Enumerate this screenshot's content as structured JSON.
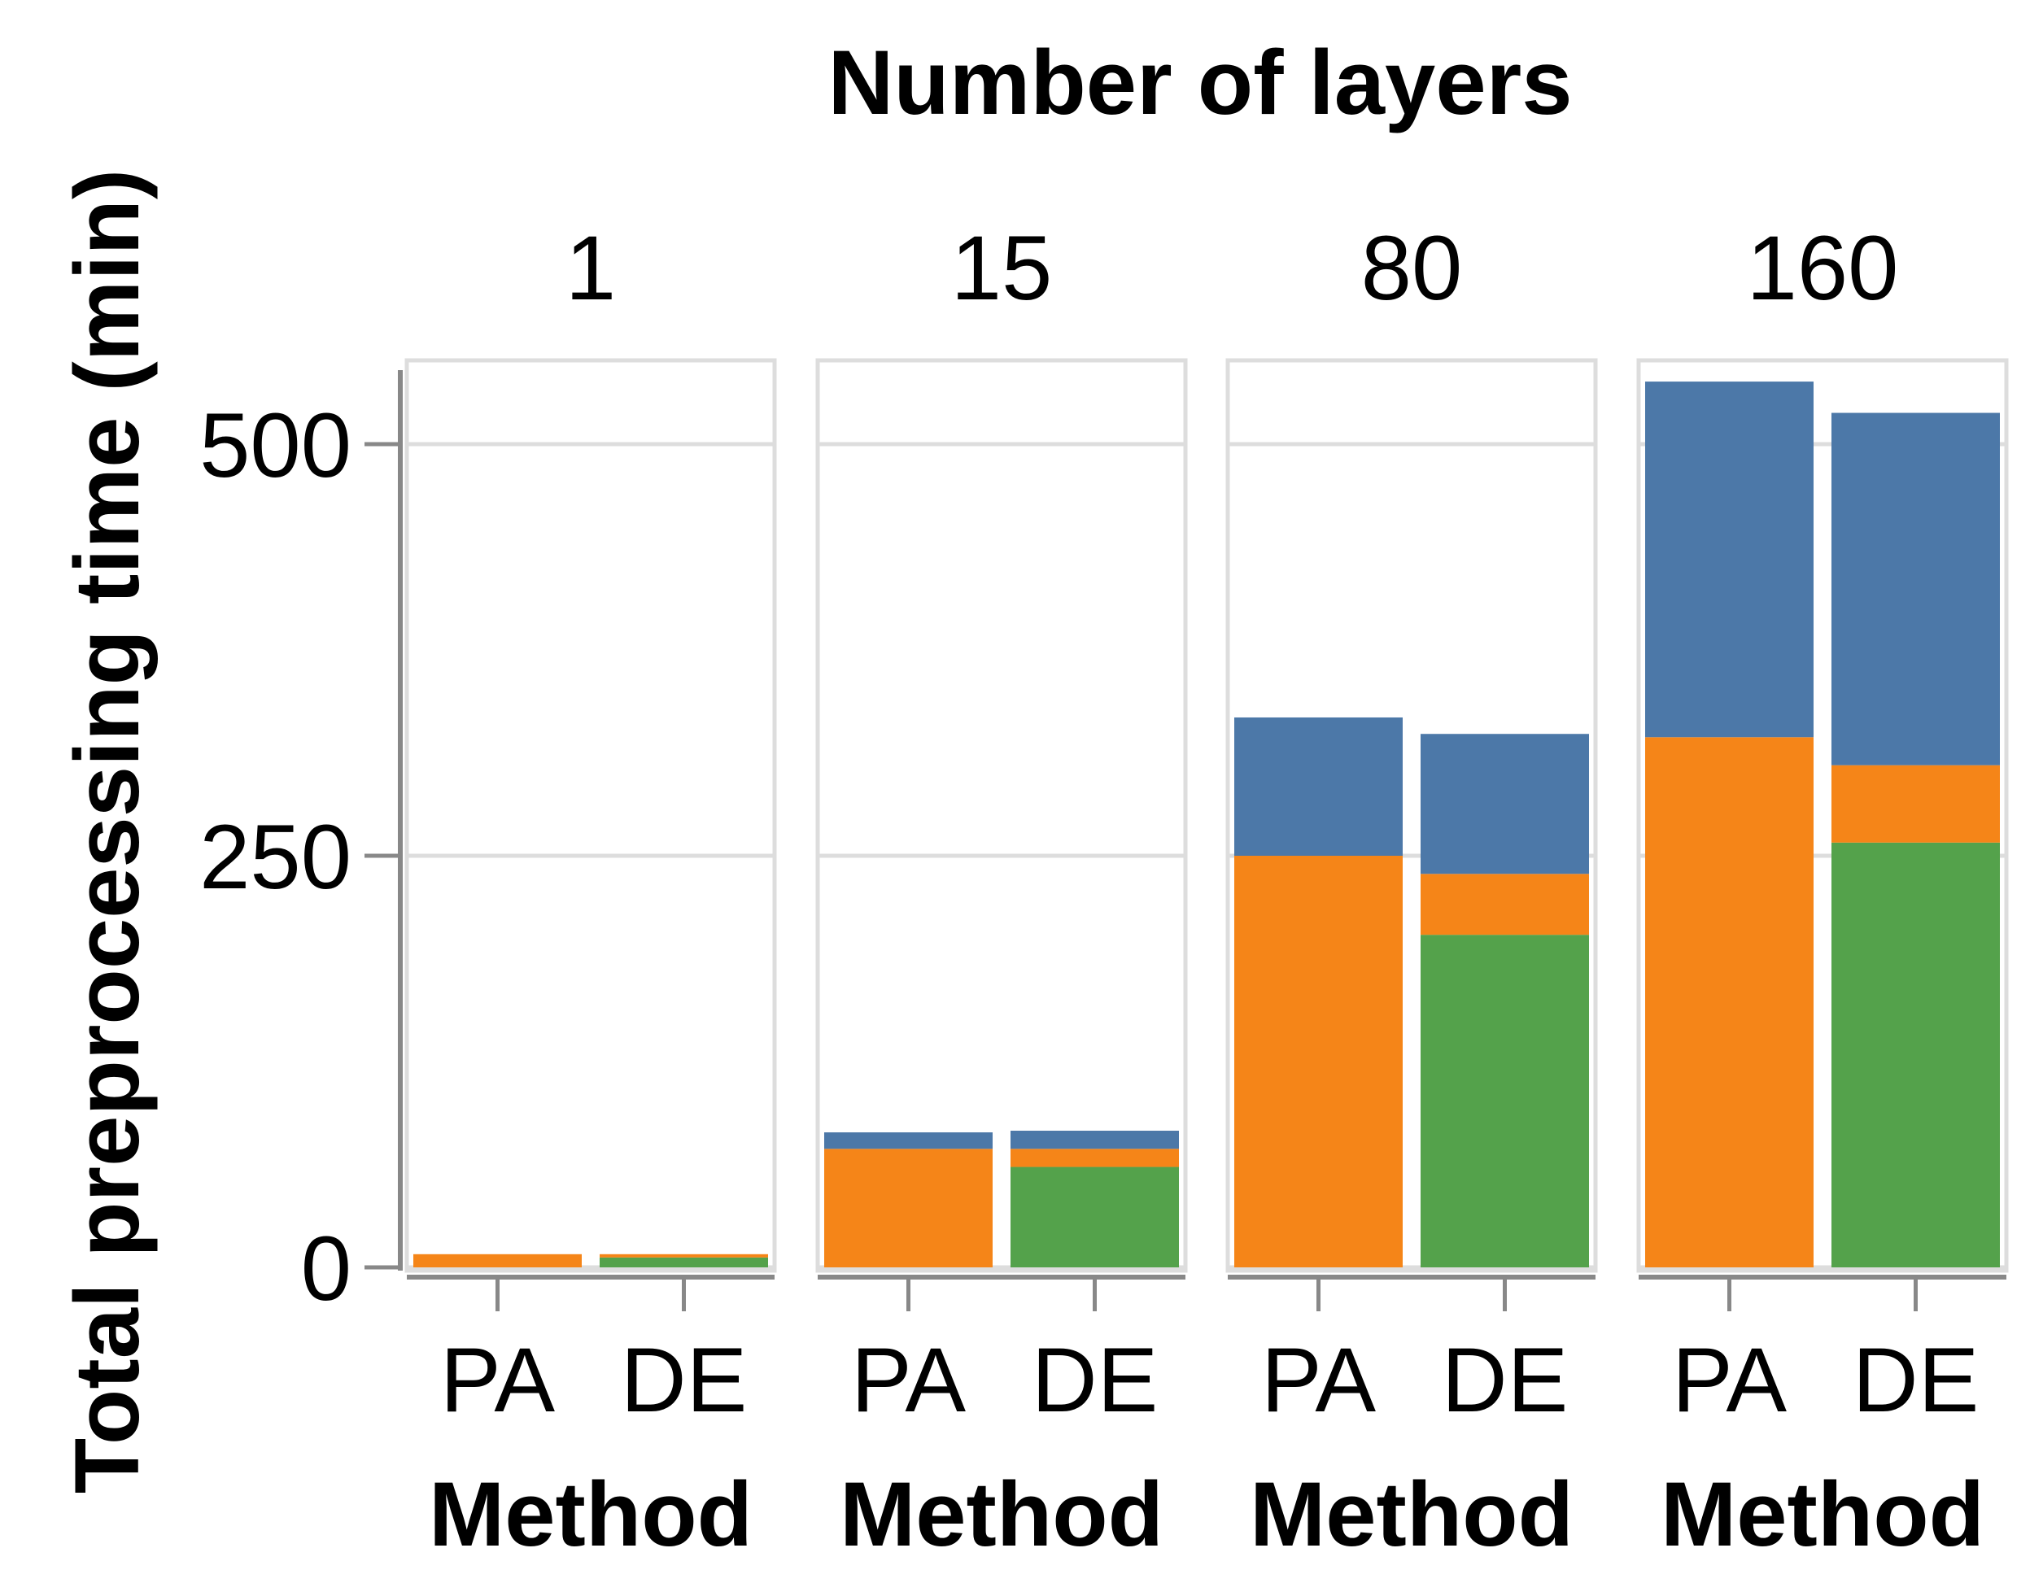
{
  "chart_data": {
    "type": "bar",
    "stacked": true,
    "faceted": true,
    "facet_title": "Number of layers",
    "facets": [
      "1",
      "15",
      "80",
      "160"
    ],
    "categories": [
      "PA",
      "DE"
    ],
    "xlabel": "Method",
    "ylabel": "Total preprocessing time (min)",
    "ylim": [
      0,
      546
    ],
    "yticks": [
      0,
      250,
      500
    ],
    "grid": true,
    "colors": {
      "green": "#54a24b",
      "orange": "#f58518",
      "blue": "#4c78a8"
    },
    "series_order": [
      "green",
      "orange",
      "blue"
    ],
    "bars": [
      {
        "facet": "1",
        "method": "PA",
        "green": 0,
        "orange": 8,
        "blue": 0
      },
      {
        "facet": "1",
        "method": "DE",
        "green": 6,
        "orange": 2,
        "blue": 0
      },
      {
        "facet": "15",
        "method": "PA",
        "green": 0,
        "orange": 72,
        "blue": 10
      },
      {
        "facet": "15",
        "method": "DE",
        "green": 61,
        "orange": 11,
        "blue": 11
      },
      {
        "facet": "80",
        "method": "PA",
        "green": 0,
        "orange": 250,
        "blue": 84
      },
      {
        "facet": "80",
        "method": "DE",
        "green": 202,
        "orange": 37,
        "blue": 85
      },
      {
        "facet": "160",
        "method": "PA",
        "green": 0,
        "orange": 322,
        "blue": 216
      },
      {
        "facet": "160",
        "method": "DE",
        "green": 258,
        "orange": 47,
        "blue": 214
      }
    ]
  }
}
